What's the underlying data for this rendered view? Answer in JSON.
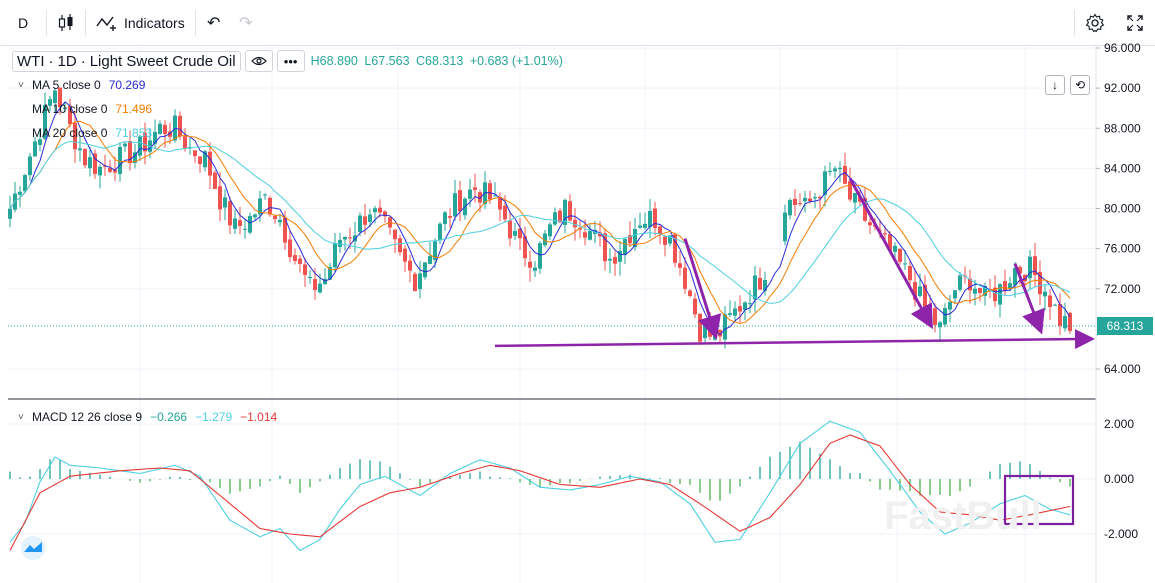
{
  "toolbar": {
    "interval": "D",
    "indicators_label": "Indicators"
  },
  "symbol": {
    "name": "WTI",
    "interval": "1D",
    "description": "Light Sweet Crude Oil",
    "sep": "·"
  },
  "ohlc": {
    "high": "H68.890",
    "low": "L67.563",
    "close": "C68.313",
    "change": "+0.683 (+1.01%)"
  },
  "ma": [
    {
      "label": "MA 5 close 0",
      "value": "70.269",
      "color": "#2a2ad8"
    },
    {
      "label": "MA 10 close 0",
      "value": "71.496",
      "color": "#f57c00"
    },
    {
      "label": "MA 20 close 0",
      "value": "71.853",
      "color": "#4dd0e1"
    }
  ],
  "macd": {
    "label": "MACD 12 26 close 9",
    "hist": "−0.266",
    "macd": "−1.279",
    "signal": "−1.014"
  },
  "last_price_tag": "68.313",
  "watermark": "FastBull",
  "colors": {
    "up": "#26a69a",
    "down": "#ef5350",
    "ma5": "#2a2ad8",
    "ma10": "#f57c00",
    "ma20": "#4dd0e1",
    "macd_line": "#4dd0e1",
    "signal_line": "#e53935",
    "annotation": "#8e24aa",
    "price_tag": "#26a69a"
  },
  "chart_data": [
    {
      "type": "candlestick",
      "title": "WTI · 1D · Light Sweet Crude Oil",
      "y_axis_ticks": [
        "96.000",
        "92.000",
        "88.000",
        "84.000",
        "80.000",
        "76.000",
        "72.000",
        "64.000"
      ],
      "ylim": [
        62,
        96
      ],
      "last_price": 68.313,
      "close_path": [
        [
          0,
          80
        ],
        [
          3,
          84
        ],
        [
          6,
          88
        ],
        [
          9,
          92
        ],
        [
          12,
          88
        ],
        [
          15,
          85
        ],
        [
          18,
          84
        ],
        [
          22,
          85
        ],
        [
          26,
          86
        ],
        [
          30,
          88
        ],
        [
          33,
          88
        ],
        [
          36,
          86
        ],
        [
          39,
          85
        ],
        [
          42,
          81
        ],
        [
          45,
          78
        ],
        [
          48,
          79
        ],
        [
          51,
          81
        ],
        [
          54,
          79
        ],
        [
          57,
          75
        ],
        [
          60,
          72
        ],
        [
          63,
          73
        ],
        [
          66,
          77
        ],
        [
          69,
          78
        ],
        [
          72,
          80
        ],
        [
          75,
          78
        ],
        [
          78,
          75
        ],
        [
          81,
          73
        ],
        [
          84,
          76
        ],
        [
          87,
          79
        ],
        [
          90,
          81
        ],
        [
          93,
          82
        ],
        [
          96,
          81
        ],
        [
          99,
          79
        ],
        [
          102,
          76
        ],
        [
          105,
          75
        ],
        [
          108,
          78
        ],
        [
          111,
          80
        ],
        [
          114,
          79
        ],
        [
          117,
          77
        ],
        [
          120,
          75
        ],
        [
          123,
          77
        ],
        [
          126,
          79
        ],
        [
          129,
          79
        ],
        [
          132,
          77
        ],
        [
          135,
          73
        ],
        [
          138,
          68
        ],
        [
          141,
          67
        ],
        [
          144,
          69
        ],
        [
          147,
          71
        ],
        [
          150,
          73
        ],
        [
          153,
          76
        ],
        [
          156,
          81
        ],
        [
          159,
          80
        ],
        [
          162,
          82
        ],
        [
          165,
          84
        ],
        [
          168,
          81
        ],
        [
          171,
          79
        ],
        [
          174,
          77
        ],
        [
          177,
          75
        ],
        [
          180,
          73
        ],
        [
          183,
          70
        ],
        [
          186,
          68
        ],
        [
          189,
          72
        ],
        [
          192,
          73
        ],
        [
          195,
          71
        ],
        [
          198,
          72
        ],
        [
          201,
          74
        ],
        [
          204,
          74
        ],
        [
          207,
          72
        ],
        [
          210,
          69
        ],
        [
          212,
          68.3
        ]
      ],
      "annotations": [
        {
          "type": "arrow",
          "from": [
            135,
            77
          ],
          "to": [
            141,
            67.5
          ]
        },
        {
          "type": "arrow",
          "from": [
            168,
            83
          ],
          "to": [
            184,
            68.5
          ]
        },
        {
          "type": "arrow",
          "from": [
            201,
            74.5
          ],
          "to": [
            206,
            68
          ]
        },
        {
          "type": "horizontal-ray",
          "from": [
            97,
            66.3
          ],
          "to": [
            216,
            67
          ]
        }
      ]
    },
    {
      "type": "macd",
      "title": "MACD 12 26 close 9",
      "y_axis_ticks": [
        "2.000",
        "0.000",
        "-2.000"
      ],
      "ylim": [
        -2.4,
        2.4
      ],
      "macd_path": [
        [
          0,
          -2.3
        ],
        [
          3,
          -1.6
        ],
        [
          6,
          -0.1
        ],
        [
          9,
          0.8
        ],
        [
          12,
          0.5
        ],
        [
          18,
          0.4
        ],
        [
          26,
          0.2
        ],
        [
          33,
          0.5
        ],
        [
          38,
          0.1
        ],
        [
          44,
          -1.5
        ],
        [
          50,
          -2.1
        ],
        [
          54,
          -1.8
        ],
        [
          58,
          -2.6
        ],
        [
          62,
          -2.2
        ],
        [
          66,
          -1.1
        ],
        [
          70,
          -0.2
        ],
        [
          75,
          0.1
        ],
        [
          82,
          -0.6
        ],
        [
          88,
          0.2
        ],
        [
          94,
          0.7
        ],
        [
          100,
          0.4
        ],
        [
          106,
          -0.3
        ],
        [
          112,
          -0.4
        ],
        [
          118,
          -0.2
        ],
        [
          124,
          0.1
        ],
        [
          130,
          -0.1
        ],
        [
          136,
          -0.9
        ],
        [
          141,
          -2.3
        ],
        [
          146,
          -2.2
        ],
        [
          152,
          -0.5
        ],
        [
          158,
          1.3
        ],
        [
          164,
          2.1
        ],
        [
          170,
          1.7
        ],
        [
          176,
          0.3
        ],
        [
          182,
          -1.2
        ],
        [
          187,
          -2.0
        ],
        [
          192,
          -1.6
        ],
        [
          198,
          -0.9
        ],
        [
          203,
          -0.6
        ],
        [
          208,
          -1.1
        ],
        [
          212,
          -1.3
        ]
      ],
      "signal_path": [
        [
          0,
          -2.6
        ],
        [
          6,
          -0.5
        ],
        [
          12,
          0.1
        ],
        [
          22,
          0.3
        ],
        [
          30,
          0.4
        ],
        [
          36,
          0.3
        ],
        [
          44,
          -0.9
        ],
        [
          50,
          -1.8
        ],
        [
          56,
          -2.0
        ],
        [
          62,
          -2.1
        ],
        [
          70,
          -1.0
        ],
        [
          76,
          -0.5
        ],
        [
          82,
          -0.3
        ],
        [
          90,
          0.2
        ],
        [
          96,
          0.5
        ],
        [
          102,
          0.3
        ],
        [
          110,
          -0.2
        ],
        [
          118,
          -0.3
        ],
        [
          126,
          0.0
        ],
        [
          132,
          -0.2
        ],
        [
          138,
          -0.9
        ],
        [
          146,
          -1.9
        ],
        [
          152,
          -1.4
        ],
        [
          158,
          -0.2
        ],
        [
          164,
          1.3
        ],
        [
          168,
          1.6
        ],
        [
          174,
          1.2
        ],
        [
          180,
          -0.2
        ],
        [
          186,
          -1.2
        ],
        [
          192,
          -1.3
        ],
        [
          198,
          -1.5
        ],
        [
          204,
          -1.3
        ],
        [
          212,
          -1.0
        ]
      ]
    }
  ]
}
